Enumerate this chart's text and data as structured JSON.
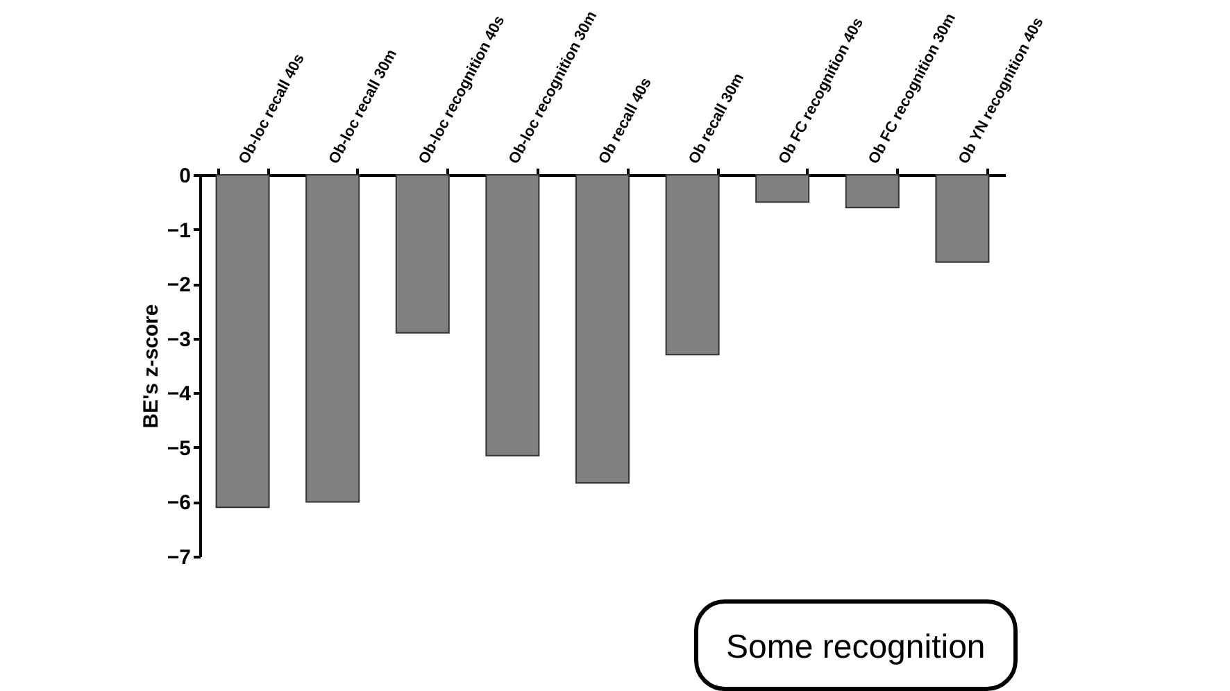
{
  "chart_data": {
    "type": "bar",
    "ylabel": "BE's z-score",
    "categories": [
      "Ob-loc recall 40s",
      "Ob-loc recall 30m",
      "Ob-loc recognition 40s",
      "Ob-loc recognition 30m",
      "Ob recall 40s",
      "Ob recall 30m",
      "Ob FC recognition 40s",
      "Ob FC recognition 30m",
      "Ob YN recognition 40s"
    ],
    "values": [
      -6.1,
      -6.0,
      -2.9,
      -5.15,
      -5.65,
      -3.3,
      -0.5,
      -0.6,
      -1.6
    ],
    "color": "#808080",
    "ylim": [
      -7,
      0
    ],
    "yticks": [
      -7,
      -6,
      -5,
      -4,
      -3,
      -2,
      -1,
      0
    ],
    "annotations": [
      "Some recognition"
    ]
  }
}
